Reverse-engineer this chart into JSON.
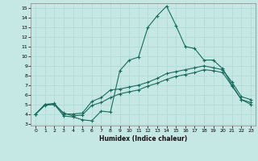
{
  "title": "",
  "xlabel": "Humidex (Indice chaleur)",
  "ylabel": "",
  "bg_color": "#c5e8e5",
  "line_color": "#1a6b5e",
  "grid_color": "#b0d8d4",
  "xlim": [
    -0.5,
    23.5
  ],
  "ylim": [
    2.8,
    15.5
  ],
  "xticks": [
    0,
    1,
    2,
    3,
    4,
    5,
    6,
    7,
    8,
    9,
    10,
    11,
    12,
    13,
    14,
    15,
    16,
    17,
    18,
    19,
    20,
    21,
    22,
    23
  ],
  "yticks": [
    3,
    4,
    5,
    6,
    7,
    8,
    9,
    10,
    11,
    12,
    13,
    14,
    15
  ],
  "line1_x": [
    0,
    1,
    2,
    3,
    4,
    5,
    6,
    7,
    8,
    9,
    10,
    11,
    12,
    13,
    14,
    15,
    16,
    17,
    18,
    19,
    20,
    21,
    22,
    23
  ],
  "line1_y": [
    4.0,
    5.0,
    5.0,
    3.8,
    3.7,
    3.4,
    3.3,
    4.3,
    4.2,
    8.5,
    9.6,
    9.9,
    13.0,
    14.2,
    15.2,
    13.2,
    11.0,
    10.8,
    9.6,
    9.6,
    8.7,
    7.0,
    5.5,
    5.0
  ],
  "line2_x": [
    0,
    1,
    2,
    3,
    4,
    5,
    6,
    7,
    8,
    9,
    10,
    11,
    12,
    13,
    14,
    15,
    16,
    17,
    18,
    19,
    20,
    21,
    22,
    23
  ],
  "line2_y": [
    4.0,
    5.0,
    5.1,
    4.0,
    4.0,
    4.1,
    5.3,
    5.7,
    6.5,
    6.6,
    6.8,
    7.0,
    7.3,
    7.7,
    8.2,
    8.4,
    8.6,
    8.8,
    9.0,
    8.8,
    8.6,
    7.3,
    5.8,
    5.5
  ],
  "line3_x": [
    0,
    1,
    2,
    3,
    4,
    5,
    6,
    7,
    8,
    9,
    10,
    11,
    12,
    13,
    14,
    15,
    16,
    17,
    18,
    19,
    20,
    21,
    22,
    23
  ],
  "line3_y": [
    4.0,
    4.9,
    5.0,
    4.1,
    3.8,
    3.9,
    4.9,
    5.2,
    5.7,
    6.1,
    6.3,
    6.5,
    6.9,
    7.2,
    7.6,
    7.9,
    8.1,
    8.3,
    8.6,
    8.5,
    8.3,
    6.9,
    5.5,
    5.2
  ]
}
